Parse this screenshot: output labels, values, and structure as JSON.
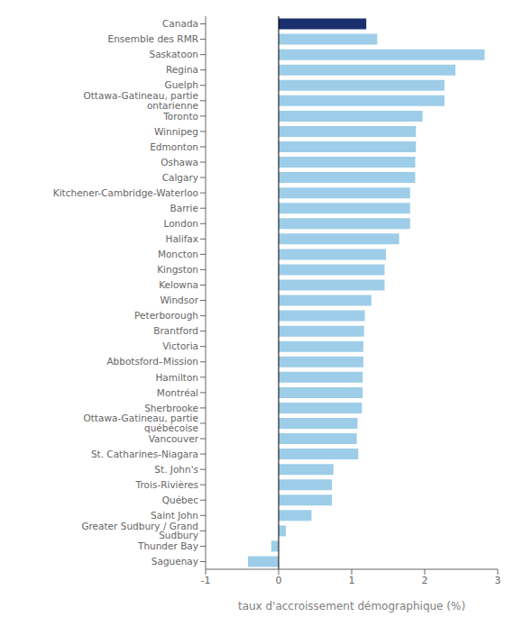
{
  "chart_data": {
    "type": "bar",
    "orientation": "horizontal",
    "categories": [
      "Canada",
      "Ensemble des RMR",
      "Saskatoon",
      "Regina",
      "Guelph",
      "Ottawa-Gatineau, partie ontarienne",
      "Toronto",
      "Winnipeg",
      "Edmonton",
      "Oshawa",
      "Calgary",
      "Kitchener-Cambridge-Waterloo",
      "Barrie",
      "London",
      "Halifax",
      "Moncton",
      "Kingston",
      "Kelowna",
      "Windsor",
      "Peterborough",
      "Brantford",
      "Victoria",
      "Abbotsford–Mission",
      "Hamilton",
      "Montréal",
      "Sherbrooke",
      "Ottawa-Gatineau, partie québécoise",
      "Vancouver",
      "St. Catharines-Niagara",
      "St. John's",
      "Trois-Rivières",
      "Québec",
      "Saint John",
      "Greater Sudbury / Grand Sudbury",
      "Thunder Bay",
      "Saguenay"
    ],
    "values": [
      1.2,
      1.35,
      2.82,
      2.42,
      2.27,
      2.27,
      1.97,
      1.88,
      1.88,
      1.87,
      1.87,
      1.8,
      1.8,
      1.8,
      1.65,
      1.47,
      1.45,
      1.45,
      1.27,
      1.18,
      1.17,
      1.16,
      1.16,
      1.15,
      1.15,
      1.14,
      1.08,
      1.07,
      1.09,
      0.75,
      0.73,
      0.73,
      0.45,
      0.1,
      -0.1,
      -0.42
    ],
    "colors": [
      "#1a2f6e",
      "#9dcde8",
      "#9dcde8",
      "#9dcde8",
      "#9dcde8",
      "#9dcde8",
      "#9dcde8",
      "#9dcde8",
      "#9dcde8",
      "#9dcde8",
      "#9dcde8",
      "#9dcde8",
      "#9dcde8",
      "#9dcde8",
      "#9dcde8",
      "#9dcde8",
      "#9dcde8",
      "#9dcde8",
      "#9dcde8",
      "#9dcde8",
      "#9dcde8",
      "#9dcde8",
      "#9dcde8",
      "#9dcde8",
      "#9dcde8",
      "#9dcde8",
      "#9dcde8",
      "#9dcde8",
      "#9dcde8",
      "#9dcde8",
      "#9dcde8",
      "#9dcde8",
      "#9dcde8",
      "#9dcde8",
      "#9dcde8",
      "#9dcde8"
    ],
    "xlabel": "taux d'accroissement démographique (%)",
    "xlim": [
      -1,
      3
    ],
    "xticks": [
      -1,
      0,
      1,
      2,
      3
    ],
    "grid": false
  }
}
